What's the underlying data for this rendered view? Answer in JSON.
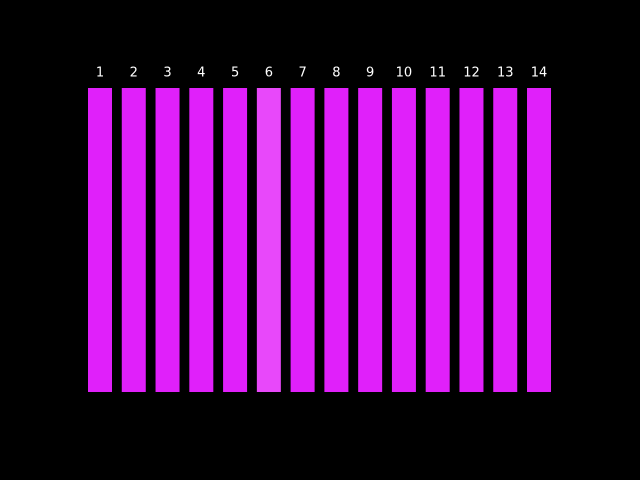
{
  "labels": [
    "1",
    "2",
    "3",
    "4",
    "5",
    "6",
    "7",
    "8",
    "9",
    "10",
    "11",
    "12",
    "13",
    "14"
  ],
  "color": "#e020fa",
  "selected_color": "#e848fa",
  "selected": "6"
}
